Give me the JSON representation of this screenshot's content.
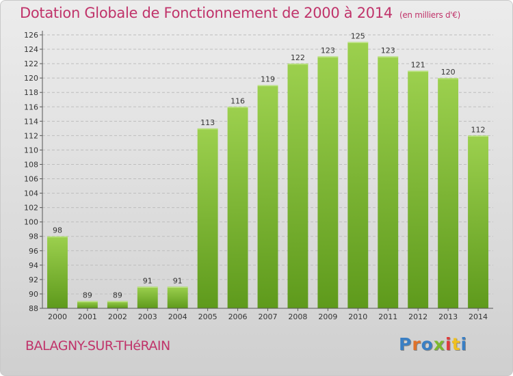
{
  "header": {
    "title": "Dotation Globale de Fonctionnement de 2000 à 2014",
    "subtitle": "(en milliers d'€)"
  },
  "footer": {
    "commune": "BALAGNY-SUR-THéRAIN",
    "brand": "Proxiti"
  },
  "colors": {
    "title": "#c0336a",
    "bar_top": "#9cd04e",
    "bar_bottom": "#5e9a1c",
    "grid": "#bdbdbd"
  },
  "chart_data": {
    "type": "bar",
    "title": "Dotation Globale de Fonctionnement de 2000 à 2014",
    "subtitle": "(en milliers d'€)",
    "xlabel": "",
    "ylabel": "",
    "categories": [
      "2000",
      "2001",
      "2002",
      "2003",
      "2004",
      "2005",
      "2006",
      "2007",
      "2008",
      "2009",
      "2010",
      "2011",
      "2012",
      "2013",
      "2014"
    ],
    "values": [
      98,
      89,
      89,
      91,
      91,
      113,
      116,
      119,
      122,
      123,
      125,
      123,
      121,
      120,
      112
    ],
    "ylim": [
      88,
      126
    ],
    "yticks": [
      88,
      90,
      92,
      94,
      96,
      98,
      100,
      102,
      104,
      106,
      108,
      110,
      112,
      114,
      116,
      118,
      120,
      122,
      124,
      126
    ],
    "grid": true,
    "data_labels": true
  }
}
